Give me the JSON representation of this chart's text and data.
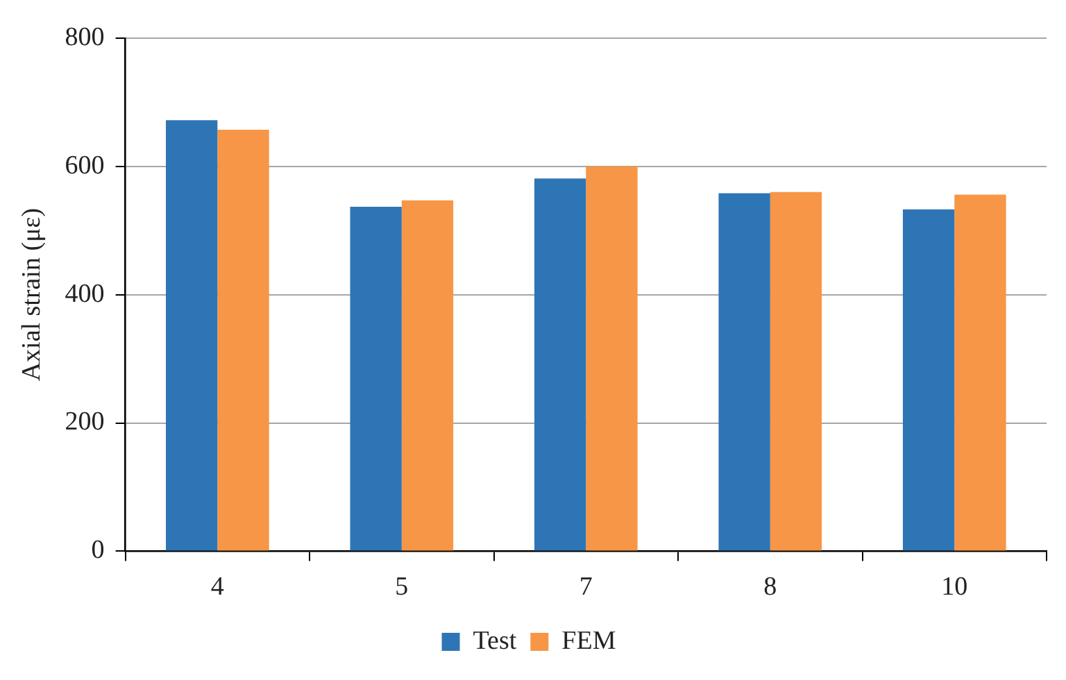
{
  "chart_data": {
    "type": "bar",
    "ylabel": "Axial strain (με)",
    "categories": [
      "4",
      "5",
      "7",
      "8",
      "10"
    ],
    "series": [
      {
        "name": "Test",
        "color": "#2e75b6",
        "values": [
          672,
          537,
          581,
          558,
          533
        ]
      },
      {
        "name": "FEM",
        "color": "#f79646",
        "values": [
          657,
          547,
          600,
          560,
          556
        ]
      }
    ],
    "ylim": [
      0,
      800
    ],
    "yticks": [
      0,
      200,
      400,
      600,
      800
    ],
    "grid": "y",
    "legend": "bottom"
  }
}
